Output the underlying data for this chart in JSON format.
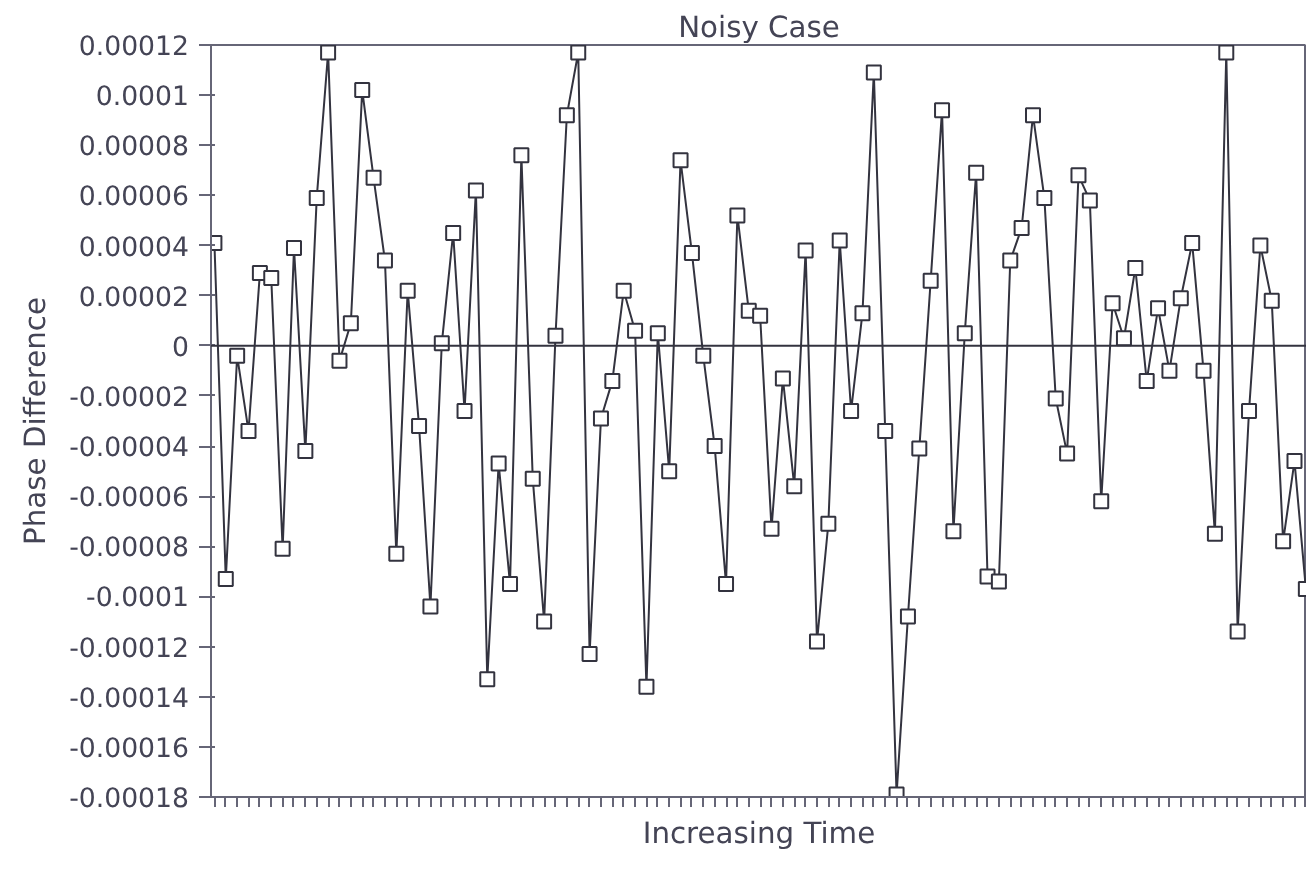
{
  "chart_data": {
    "type": "line",
    "title": "Noisy Case",
    "xlabel": "Increasing Time",
    "ylabel": "Phase Difference",
    "categories": [
      null,
      null,
      null,
      null,
      null,
      null,
      null,
      null,
      null,
      null,
      null,
      null,
      null,
      null,
      null,
      null,
      null,
      null,
      null,
      null,
      null,
      null,
      null,
      null,
      null,
      null,
      null,
      null,
      null,
      null,
      null,
      null,
      null,
      null,
      null,
      null,
      null,
      null,
      null,
      null,
      null,
      null,
      null,
      null,
      null,
      null,
      null,
      null,
      null,
      null,
      null,
      null,
      null,
      null,
      null,
      null,
      null,
      null,
      null,
      null,
      null,
      null,
      null,
      null,
      null,
      null,
      null,
      null,
      null,
      null,
      null,
      null,
      null,
      null,
      null,
      null,
      null,
      null,
      null,
      null,
      null,
      null,
      null,
      null,
      null,
      null,
      null,
      null,
      null,
      null,
      null,
      null,
      null,
      null,
      null,
      null,
      null
    ],
    "series": [
      {
        "color": "#33333f",
        "values": [
          4.1e-05,
          -9.3e-05,
          -4e-06,
          -3.4e-05,
          2.9e-05,
          2.7e-05,
          -8.1e-05,
          3.9e-05,
          -4.2e-05,
          5.9e-05,
          0.000117,
          -6e-06,
          9e-06,
          0.000102,
          6.7e-05,
          3.4e-05,
          -8.3e-05,
          2.2e-05,
          -3.2e-05,
          -0.000104,
          1e-06,
          4.5e-05,
          -2.6e-05,
          6.2e-05,
          -0.000133,
          -4.7e-05,
          -9.5e-05,
          7.6e-05,
          -5.3e-05,
          -0.00011,
          4e-06,
          9.2e-05,
          0.000117,
          -0.000123,
          -2.9e-05,
          -1.4e-05,
          2.2e-05,
          6e-06,
          -0.000136,
          5e-06,
          -5e-05,
          7.4e-05,
          3.7e-05,
          -4e-06,
          -4e-05,
          -9.5e-05,
          5.2e-05,
          1.4e-05,
          1.2e-05,
          -7.3e-05,
          -1.3e-05,
          -5.6e-05,
          3.8e-05,
          -0.000118,
          -7.1e-05,
          4.2e-05,
          -2.6e-05,
          1.3e-05,
          0.000109,
          -3.4e-05,
          -0.000179,
          -0.000108,
          -4.1e-05,
          2.6e-05,
          9.4e-05,
          -7.4e-05,
          5e-06,
          6.9e-05,
          -9.2e-05,
          -9.4e-05,
          3.4e-05,
          4.7e-05,
          9.2e-05,
          5.9e-05,
          -2.1e-05,
          -4.3e-05,
          6.8e-05,
          5.8e-05,
          -6.2e-05,
          1.7e-05,
          3e-06,
          3.1e-05,
          -1.4e-05,
          1.5e-05,
          -1e-05,
          1.9e-05,
          4.1e-05,
          -1e-05,
          -7.5e-05,
          0.000117,
          -0.000114,
          -2.6e-05,
          4e-05,
          1.8e-05,
          -7.8e-05,
          -4.6e-05,
          -9.7e-05
        ]
      }
    ],
    "ylim": [
      -0.00018,
      0.00012
    ],
    "yticks": [
      {
        "value": 0.00012,
        "label": "0.00012"
      },
      {
        "value": 0.0001,
        "label": "0.0001"
      },
      {
        "value": 8e-05,
        "label": "0.00008"
      },
      {
        "value": 6e-05,
        "label": "0.00006"
      },
      {
        "value": 4e-05,
        "label": "0.00004"
      },
      {
        "value": 2e-05,
        "label": "0.00002"
      },
      {
        "value": 0,
        "label": "0"
      },
      {
        "value": -2e-05,
        "label": "-0.00002"
      },
      {
        "value": -4e-05,
        "label": "-0.00004"
      },
      {
        "value": -6e-05,
        "label": "-0.00006"
      },
      {
        "value": -8e-05,
        "label": "-0.00008"
      },
      {
        "value": -0.0001,
        "label": "-0.0001"
      },
      {
        "value": -0.00012,
        "label": "-0.00012"
      },
      {
        "value": -0.00014,
        "label": "-0.00014"
      },
      {
        "value": -0.00016,
        "label": "-0.00016"
      },
      {
        "value": -0.00018,
        "label": "-0.00018"
      }
    ],
    "ref_lines": [
      {
        "axis": "y",
        "value": 0,
        "color": "#33333f"
      }
    ],
    "grid": false,
    "marker": "square",
    "line_style": "solid",
    "tick_labels": "y"
  }
}
